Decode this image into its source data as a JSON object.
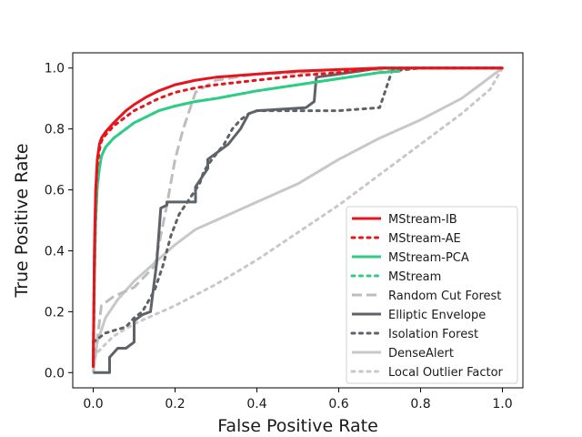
{
  "chart_data": {
    "type": "line",
    "title": "",
    "xlabel": "False Positive Rate",
    "ylabel": "True Positive Rate",
    "xlim": [
      -0.05,
      1.05
    ],
    "ylim": [
      -0.05,
      1.05
    ],
    "xticks": [
      "0.0",
      "0.2",
      "0.4",
      "0.6",
      "0.8",
      "1.0"
    ],
    "yticks": [
      "0.0",
      "0.2",
      "0.4",
      "0.6",
      "0.8",
      "1.0"
    ],
    "grid": false,
    "legend_position": "lower-right",
    "series": [
      {
        "name": "MStream-IB",
        "color": "#e8141c",
        "style": "solid",
        "x": [
          0.0,
          0.003,
          0.006,
          0.01,
          0.015,
          0.02,
          0.03,
          0.05,
          0.08,
          0.1,
          0.13,
          0.16,
          0.2,
          0.25,
          0.3,
          0.4,
          0.5,
          0.6,
          0.7,
          0.8,
          0.9,
          1.0
        ],
        "y": [
          0.02,
          0.4,
          0.6,
          0.7,
          0.75,
          0.77,
          0.79,
          0.82,
          0.86,
          0.88,
          0.905,
          0.925,
          0.945,
          0.96,
          0.97,
          0.98,
          0.99,
          0.995,
          1.0,
          1.0,
          1.0,
          1.0
        ]
      },
      {
        "name": "MStream-AE",
        "color": "#e8141c",
        "style": "dotted",
        "x": [
          0.0,
          0.003,
          0.006,
          0.01,
          0.015,
          0.02,
          0.03,
          0.05,
          0.08,
          0.1,
          0.13,
          0.16,
          0.2,
          0.25,
          0.3,
          0.4,
          0.5,
          0.6,
          0.7,
          0.8,
          0.9,
          1.0
        ],
        "y": [
          0.02,
          0.38,
          0.58,
          0.68,
          0.73,
          0.76,
          0.78,
          0.81,
          0.84,
          0.86,
          0.88,
          0.9,
          0.92,
          0.935,
          0.945,
          0.96,
          0.975,
          0.985,
          1.0,
          1.0,
          1.0,
          1.0
        ]
      },
      {
        "name": "MStream-PCA",
        "color": "#2ecc85",
        "style": "solid",
        "x": [
          0.0,
          0.003,
          0.006,
          0.01,
          0.015,
          0.02,
          0.03,
          0.05,
          0.08,
          0.1,
          0.13,
          0.16,
          0.2,
          0.25,
          0.3,
          0.4,
          0.5,
          0.6,
          0.7,
          0.75
        ],
        "y": [
          0.02,
          0.3,
          0.5,
          0.61,
          0.67,
          0.71,
          0.74,
          0.77,
          0.8,
          0.82,
          0.84,
          0.86,
          0.875,
          0.89,
          0.9,
          0.925,
          0.945,
          0.965,
          0.985,
          0.99
        ]
      },
      {
        "name": "MStream",
        "color": "#2ecc85",
        "style": "dotted",
        "x": [
          0.0,
          0.003,
          0.006,
          0.01,
          0.015,
          0.02,
          0.03,
          0.05,
          0.08,
          0.1,
          0.13,
          0.16,
          0.2,
          0.25,
          0.3,
          0.4,
          0.5,
          0.6,
          0.7,
          0.75
        ],
        "y": [
          0.02,
          0.3,
          0.5,
          0.61,
          0.67,
          0.71,
          0.74,
          0.77,
          0.8,
          0.82,
          0.84,
          0.86,
          0.875,
          0.89,
          0.9,
          0.925,
          0.945,
          0.965,
          0.985,
          0.99
        ]
      },
      {
        "name": "Random Cut Forest",
        "color": "#bdbdbd",
        "style": "dashed",
        "x": [
          0.0,
          0.02,
          0.05,
          0.1,
          0.15,
          0.18,
          0.2,
          0.22,
          0.25,
          0.3,
          0.4,
          0.6,
          0.8,
          1.0
        ],
        "y": [
          0.0,
          0.22,
          0.25,
          0.28,
          0.35,
          0.55,
          0.7,
          0.8,
          0.92,
          0.96,
          0.98,
          0.99,
          1.0,
          1.0
        ]
      },
      {
        "name": "Elliptic Envelope",
        "color": "#5f6368",
        "style": "solid",
        "x": [
          0.0,
          0.04,
          0.04,
          0.06,
          0.08,
          0.1,
          0.1,
          0.12,
          0.14,
          0.155,
          0.165,
          0.18,
          0.18,
          0.25,
          0.25,
          0.28,
          0.28,
          0.3,
          0.33,
          0.36,
          0.38,
          0.4,
          0.4,
          0.52,
          0.54,
          0.545,
          0.6,
          0.65,
          0.7,
          0.8,
          0.9,
          1.0
        ],
        "y": [
          0.0,
          0.0,
          0.05,
          0.08,
          0.08,
          0.1,
          0.17,
          0.19,
          0.2,
          0.36,
          0.54,
          0.55,
          0.56,
          0.56,
          0.61,
          0.67,
          0.7,
          0.72,
          0.75,
          0.8,
          0.85,
          0.86,
          0.86,
          0.87,
          0.89,
          0.97,
          0.98,
          0.99,
          1.0,
          1.0,
          1.0,
          1.0
        ]
      },
      {
        "name": "Isolation Forest",
        "color": "#5f6368",
        "style": "dotted",
        "x": [
          0.0,
          0.03,
          0.08,
          0.1,
          0.12,
          0.15,
          0.17,
          0.19,
          0.21,
          0.23,
          0.26,
          0.27,
          0.29,
          0.32,
          0.34,
          0.36,
          0.38,
          0.4,
          0.5,
          0.6,
          0.7,
          0.72,
          0.73,
          0.8,
          0.9,
          1.0
        ],
        "y": [
          0.1,
          0.13,
          0.15,
          0.18,
          0.2,
          0.27,
          0.35,
          0.45,
          0.52,
          0.56,
          0.62,
          0.66,
          0.7,
          0.75,
          0.8,
          0.83,
          0.85,
          0.86,
          0.86,
          0.86,
          0.87,
          0.95,
          0.99,
          1.0,
          1.0,
          1.0
        ]
      },
      {
        "name": "DenseAlert",
        "color": "#c8c8c8",
        "style": "solid",
        "x": [
          0.0,
          0.01,
          0.03,
          0.06,
          0.1,
          0.15,
          0.2,
          0.25,
          0.3,
          0.4,
          0.5,
          0.6,
          0.7,
          0.8,
          0.9,
          0.95,
          1.0
        ],
        "y": [
          0.0,
          0.1,
          0.18,
          0.24,
          0.3,
          0.36,
          0.42,
          0.47,
          0.5,
          0.56,
          0.62,
          0.7,
          0.77,
          0.83,
          0.9,
          0.95,
          1.0
        ]
      },
      {
        "name": "Local Outlier Factor",
        "color": "#c8c8c8",
        "style": "dotted",
        "x": [
          0.0,
          0.02,
          0.05,
          0.1,
          0.15,
          0.2,
          0.3,
          0.4,
          0.5,
          0.6,
          0.7,
          0.8,
          0.9,
          0.97,
          1.0
        ],
        "y": [
          0.05,
          0.08,
          0.12,
          0.16,
          0.19,
          0.22,
          0.29,
          0.37,
          0.46,
          0.55,
          0.65,
          0.75,
          0.85,
          0.93,
          1.0
        ]
      }
    ]
  }
}
